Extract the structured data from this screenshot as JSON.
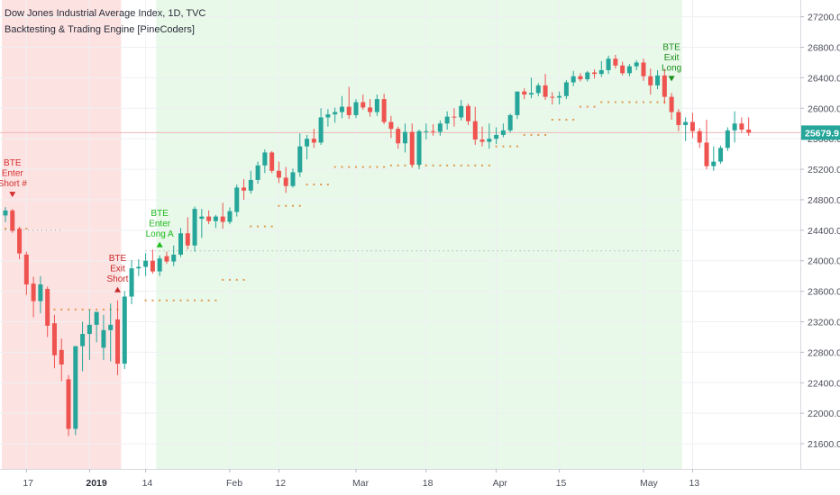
{
  "header": {
    "title": "Dow Jones Industrial Average Index, 1D, TVC",
    "subtitle": "Backtesting & Trading Engine [PineCoders]"
  },
  "colors": {
    "up": "#26a69a",
    "down": "#ef5350",
    "short_zone": "#fde2e2",
    "long_zone": "#e8f8e9",
    "trail_stop": "#e09a4f",
    "price_line": "#f0b9b9",
    "price_tag": "#26a69a",
    "enter_short": "#d32f2f",
    "exit_short": "#c62828",
    "enter_long": "#1db91d",
    "exit_long": "#1b8f1b"
  },
  "chart_data": {
    "type": "candlestick",
    "title": "Dow Jones Industrial Average Index, 1D, TVC",
    "subtitle": "Backtesting & Trading Engine [PineCoders]",
    "x_tick_labels": [
      "17",
      "2019",
      "14",
      "Feb",
      "12",
      "Mar",
      "18",
      "Apr",
      "15",
      "May",
      "13"
    ],
    "x_tick_index": [
      3,
      12,
      20,
      32,
      39,
      50,
      60,
      70,
      79,
      91,
      98
    ],
    "x_tick_bold": [
      "2019"
    ],
    "y_axis": {
      "ticks": [
        27200,
        26800,
        26400,
        26000,
        25600,
        25200,
        24800,
        24400,
        24000,
        23600,
        23200,
        22800,
        22400,
        22000,
        21600
      ],
      "tick_labels": [
        "27200.0",
        "26800.0",
        "26400.0",
        "26000.0",
        "25600.0",
        "25200.0",
        "24800.0",
        "24400.0",
        "24000.0",
        "23600.0",
        "23200.0",
        "22800.0",
        "22400.0",
        "22000.0",
        "21600.0"
      ],
      "range": [
        21270,
        27420
      ],
      "position": "right"
    },
    "last_price": 25679.9,
    "last_price_label": "25679.9",
    "candles": [
      [
        24594,
        24703,
        24506,
        24659
      ],
      [
        24659,
        24680,
        24366,
        24393
      ],
      [
        24420,
        24446,
        24020,
        24096
      ],
      [
        24081,
        24120,
        23550,
        23689
      ],
      [
        23700,
        23790,
        23260,
        23470
      ],
      [
        23470,
        23800,
        23310,
        23690
      ],
      [
        23630,
        23660,
        23000,
        23148
      ],
      [
        23180,
        23290,
        22590,
        22760
      ],
      [
        22830,
        22980,
        22420,
        22640
      ],
      [
        22445,
        22500,
        21700,
        21795
      ],
      [
        21795,
        22880,
        21712,
        22880
      ],
      [
        22880,
        23200,
        22550,
        23040
      ],
      [
        23040,
        23360,
        22700,
        23160
      ],
      [
        23160,
        23330,
        22930,
        23330
      ],
      [
        22860,
        23290,
        22700,
        23090
      ],
      [
        23090,
        23440,
        22680,
        23160
      ],
      [
        23230,
        23480,
        22500,
        22650
      ],
      [
        22650,
        23600,
        22580,
        23530
      ],
      [
        23530,
        24010,
        23430,
        23900
      ],
      [
        23900,
        24020,
        23800,
        23920
      ],
      [
        23920,
        24100,
        23800,
        24000
      ],
      [
        24000,
        24150,
        23830,
        23860
      ],
      [
        23860,
        24070,
        23800,
        24030
      ],
      [
        24060,
        24120,
        23960,
        23990
      ],
      [
        23990,
        24200,
        23930,
        24080
      ],
      [
        24080,
        24430,
        24050,
        24360
      ],
      [
        24360,
        24570,
        24150,
        24200
      ],
      [
        24200,
        24710,
        24120,
        24680
      ],
      [
        24550,
        24680,
        24300,
        24580
      ],
      [
        24580,
        24660,
        24480,
        24520
      ],
      [
        24520,
        24600,
        24430,
        24580
      ],
      [
        24580,
        24760,
        24420,
        24510
      ],
      [
        24510,
        24700,
        24480,
        24650
      ],
      [
        24640,
        25000,
        24580,
        24960
      ],
      [
        24960,
        25070,
        24800,
        24920
      ],
      [
        24920,
        25180,
        24880,
        25060
      ],
      [
        25060,
        25300,
        25010,
        25250
      ],
      [
        25250,
        25460,
        25150,
        25420
      ],
      [
        25420,
        25440,
        25150,
        25180
      ],
      [
        25180,
        25300,
        25020,
        25090
      ],
      [
        25090,
        25230,
        24890,
        24980
      ],
      [
        24980,
        25210,
        24960,
        25160
      ],
      [
        25160,
        25670,
        25100,
        25500
      ],
      [
        25500,
        25650,
        25330,
        25600
      ],
      [
        25600,
        25730,
        25480,
        25550
      ],
      [
        25550,
        26000,
        25520,
        25880
      ],
      [
        25880,
        25990,
        25760,
        25920
      ],
      [
        25920,
        26010,
        25810,
        25950
      ],
      [
        25950,
        26160,
        25870,
        26020
      ],
      [
        26020,
        26280,
        25860,
        25910
      ],
      [
        25910,
        26120,
        25870,
        26080
      ],
      [
        26080,
        26180,
        25980,
        26010
      ],
      [
        26010,
        26120,
        25890,
        25950
      ],
      [
        25950,
        26180,
        25900,
        26120
      ],
      [
        26120,
        26190,
        25790,
        25820
      ],
      [
        25820,
        25900,
        25610,
        25730
      ],
      [
        25730,
        25760,
        25470,
        25540
      ],
      [
        25540,
        25800,
        25420,
        25690
      ],
      [
        25690,
        25800,
        25220,
        25260
      ],
      [
        25260,
        25720,
        25200,
        25700
      ],
      [
        25700,
        25800,
        25590,
        25700
      ],
      [
        25700,
        25790,
        25640,
        25690
      ],
      [
        25690,
        25840,
        25640,
        25800
      ],
      [
        25800,
        25960,
        25720,
        25890
      ],
      [
        25890,
        26000,
        25760,
        25880
      ],
      [
        25880,
        26110,
        25840,
        26030
      ],
      [
        26030,
        26060,
        25780,
        25830
      ],
      [
        25830,
        26020,
        25520,
        25590
      ],
      [
        25590,
        25760,
        25500,
        25560
      ],
      [
        25560,
        25800,
        25470,
        25600
      ],
      [
        25600,
        25750,
        25530,
        25650
      ],
      [
        25650,
        25800,
        25620,
        25710
      ],
      [
        25710,
        25930,
        25680,
        25910
      ],
      [
        25910,
        26200,
        25860,
        26220
      ],
      [
        26220,
        26260,
        26120,
        26180
      ],
      [
        26180,
        26400,
        26130,
        26200
      ],
      [
        26200,
        26330,
        26160,
        26300
      ],
      [
        26300,
        26450,
        26110,
        26150
      ],
      [
        26150,
        26210,
        26050,
        26140
      ],
      [
        26140,
        26220,
        26050,
        26160
      ],
      [
        26160,
        26370,
        26120,
        26340
      ],
      [
        26340,
        26490,
        26290,
        26420
      ],
      [
        26420,
        26460,
        26350,
        26380
      ],
      [
        26380,
        26490,
        26350,
        26470
      ],
      [
        26470,
        26510,
        26390,
        26450
      ],
      [
        26450,
        26620,
        26410,
        26500
      ],
      [
        26500,
        26690,
        26450,
        26650
      ],
      [
        26650,
        26700,
        26520,
        26560
      ],
      [
        26560,
        26610,
        26430,
        26460
      ],
      [
        26460,
        26580,
        26420,
        26550
      ],
      [
        26550,
        26630,
        26500,
        26600
      ],
      [
        26600,
        26650,
        26360,
        26420
      ],
      [
        26420,
        26520,
        26180,
        26300
      ],
      [
        26300,
        26500,
        26250,
        26430
      ],
      [
        26430,
        26520,
        26060,
        26150
      ],
      [
        26150,
        26200,
        25850,
        25950
      ],
      [
        25950,
        25990,
        25700,
        25780
      ],
      [
        25780,
        25880,
        25570,
        25820
      ],
      [
        25820,
        25940,
        25610,
        25700
      ],
      [
        25700,
        25740,
        25480,
        25550
      ],
      [
        25550,
        25850,
        25200,
        25240
      ],
      [
        25240,
        25500,
        25180,
        25300
      ],
      [
        25300,
        25510,
        25270,
        25480
      ],
      [
        25480,
        25750,
        25440,
        25710
      ],
      [
        25710,
        25960,
        25550,
        25800
      ],
      [
        25800,
        25880,
        25680,
        25720
      ],
      [
        25720,
        25880,
        25640,
        25680
      ]
    ],
    "trailing_stop": [
      {
        "from": 0,
        "to": 3,
        "value": 24420
      },
      {
        "from": 6,
        "to": 16,
        "value": 23360
      },
      {
        "from": 20,
        "to": 30,
        "value": 23480
      },
      {
        "from": 31,
        "to": 34,
        "value": 23750
      },
      {
        "from": 35,
        "to": 38,
        "value": 24450
      },
      {
        "from": 39,
        "to": 42,
        "value": 24720
      },
      {
        "from": 43,
        "to": 46,
        "value": 25000
      },
      {
        "from": 47,
        "to": 54,
        "value": 25230
      },
      {
        "from": 55,
        "to": 69,
        "value": 25250
      },
      {
        "from": 70,
        "to": 73,
        "value": 25500
      },
      {
        "from": 74,
        "to": 77,
        "value": 25650
      },
      {
        "from": 78,
        "to": 81,
        "value": 25850
      },
      {
        "from": 82,
        "to": 84,
        "value": 26020
      },
      {
        "from": 85,
        "to": 95,
        "value": 26080
      }
    ],
    "stop_lines": [
      {
        "from": 0,
        "to": 8,
        "value": 24400
      },
      {
        "from": 20,
        "to": 96,
        "value": 24130
      }
    ],
    "zones": [
      {
        "type": "short",
        "from": 0,
        "to": 16
      },
      {
        "type": "long",
        "from": 22,
        "to": 96
      }
    ],
    "annotations": [
      {
        "lines": [
          "BTE",
          "Enter",
          "Short #"
        ],
        "index": 1,
        "marker": "down",
        "role": "enter_short"
      },
      {
        "lines": [
          "BTE",
          "Exit",
          "Short"
        ],
        "index": 16,
        "marker": "up",
        "role": "exit_short"
      },
      {
        "lines": [
          "BTE",
          "Enter",
          "Long A"
        ],
        "index": 22,
        "marker": "up",
        "role": "enter_long"
      },
      {
        "lines": [
          "BTE",
          "Exit",
          "Long"
        ],
        "index": 95,
        "marker": "down",
        "role": "exit_long"
      }
    ]
  }
}
